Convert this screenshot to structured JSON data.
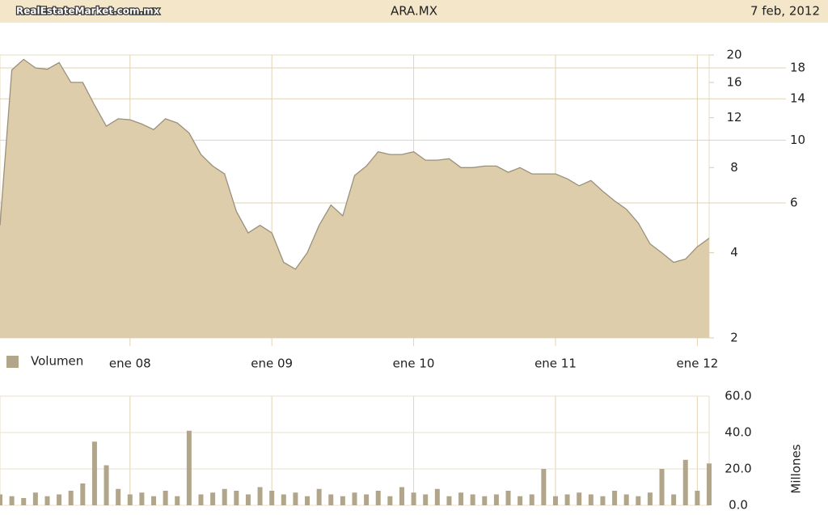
{
  "header": {
    "logo": "RealEstateMarket.com.mx",
    "title": "ARA.MX",
    "date": "7 feb, 2012"
  },
  "chart_data": [
    {
      "type": "area",
      "x": [
        "2007-02",
        "2007-03",
        "2007-04",
        "2007-05",
        "2007-06",
        "2007-07",
        "2007-08",
        "2007-09",
        "2007-10",
        "2007-11",
        "2007-12",
        "2008-01",
        "2008-02",
        "2008-03",
        "2008-04",
        "2008-05",
        "2008-06",
        "2008-07",
        "2008-08",
        "2008-09",
        "2008-10",
        "2008-11",
        "2008-12",
        "2009-01",
        "2009-02",
        "2009-03",
        "2009-04",
        "2009-05",
        "2009-06",
        "2009-07",
        "2009-08",
        "2009-09",
        "2009-10",
        "2009-11",
        "2009-12",
        "2010-01",
        "2010-02",
        "2010-03",
        "2010-04",
        "2010-05",
        "2010-06",
        "2010-07",
        "2010-08",
        "2010-09",
        "2010-10",
        "2010-11",
        "2010-12",
        "2011-01",
        "2011-02",
        "2011-03",
        "2011-04",
        "2011-05",
        "2011-06",
        "2011-07",
        "2011-08",
        "2011-09",
        "2011-10",
        "2011-11",
        "2011-12",
        "2012-01",
        "2012-02"
      ],
      "values": [
        5.0,
        17.7,
        19.3,
        18.0,
        17.8,
        18.8,
        16.0,
        16.0,
        13.3,
        11.2,
        11.9,
        11.8,
        11.4,
        10.9,
        11.9,
        11.5,
        10.6,
        8.9,
        8.1,
        7.6,
        5.6,
        4.7,
        5.0,
        4.7,
        3.7,
        3.5,
        4.0,
        5.0,
        5.9,
        5.4,
        7.5,
        8.1,
        9.1,
        8.9,
        8.9,
        9.1,
        8.5,
        8.5,
        8.6,
        8.0,
        8.0,
        8.1,
        8.1,
        7.7,
        8.0,
        7.6,
        7.6,
        7.6,
        7.3,
        6.9,
        7.2,
        6.6,
        6.1,
        5.7,
        5.1,
        4.3,
        4.0,
        3.7,
        3.8,
        4.2,
        4.5
      ],
      "color": "#ddcdaa",
      "line_color": "#9a917c",
      "log_scale": true,
      "xlim": [
        "2007-02",
        "2012-02"
      ],
      "xticks": [
        {
          "value": "2008-01",
          "label": "ene 08"
        },
        {
          "value": "2009-01",
          "label": "ene 09"
        },
        {
          "value": "2010-01",
          "label": "ene 10"
        },
        {
          "value": "2011-01",
          "label": "ene 11"
        },
        {
          "value": "2012-01",
          "label": "ene 12"
        }
      ],
      "ylim": [
        2,
        20
      ],
      "yticks": [
        2,
        4,
        8,
        12,
        16,
        20
      ],
      "y2lim": [
        2,
        20
      ],
      "y2ticks": [
        6,
        10,
        14,
        18
      ],
      "grid": true
    },
    {
      "type": "bar",
      "x": [
        "2007-02",
        "2007-03",
        "2007-04",
        "2007-05",
        "2007-06",
        "2007-07",
        "2007-08",
        "2007-09",
        "2007-10",
        "2007-11",
        "2007-12",
        "2008-01",
        "2008-02",
        "2008-03",
        "2008-04",
        "2008-05",
        "2008-06",
        "2008-07",
        "2008-08",
        "2008-09",
        "2008-10",
        "2008-11",
        "2008-12",
        "2009-01",
        "2009-02",
        "2009-03",
        "2009-04",
        "2009-05",
        "2009-06",
        "2009-07",
        "2009-08",
        "2009-09",
        "2009-10",
        "2009-11",
        "2009-12",
        "2010-01",
        "2010-02",
        "2010-03",
        "2010-04",
        "2010-05",
        "2010-06",
        "2010-07",
        "2010-08",
        "2010-09",
        "2010-10",
        "2010-11",
        "2010-12",
        "2011-01",
        "2011-02",
        "2011-03",
        "2011-04",
        "2011-05",
        "2011-06",
        "2011-07",
        "2011-08",
        "2011-09",
        "2011-10",
        "2011-11",
        "2011-12",
        "2012-01",
        "2012-02"
      ],
      "series": [
        {
          "name": "Volumen",
          "color": "#b2a68a",
          "values": [
            6,
            5,
            4,
            7,
            5,
            6,
            8,
            12,
            35,
            22,
            9,
            6,
            7,
            5,
            8,
            5,
            41,
            6,
            7,
            9,
            8,
            6,
            10,
            8,
            6,
            7,
            5,
            9,
            6,
            5,
            7,
            6,
            8,
            5,
            10,
            7,
            6,
            9,
            5,
            7,
            6,
            5,
            6,
            8,
            5,
            6,
            20,
            5,
            6,
            7,
            6,
            5,
            8,
            6,
            5,
            7,
            20,
            6,
            25,
            8,
            23
          ]
        }
      ],
      "xlim": [
        "2007-02",
        "2012-02"
      ],
      "ylim": [
        0,
        60
      ],
      "yticks": [
        {
          "value": 0,
          "label": "0.0"
        },
        {
          "value": 20,
          "label": "20.0"
        },
        {
          "value": 40,
          "label": "40.0"
        },
        {
          "value": 60,
          "label": "60.0"
        }
      ],
      "ylabel": "Millones",
      "grid": true
    }
  ]
}
